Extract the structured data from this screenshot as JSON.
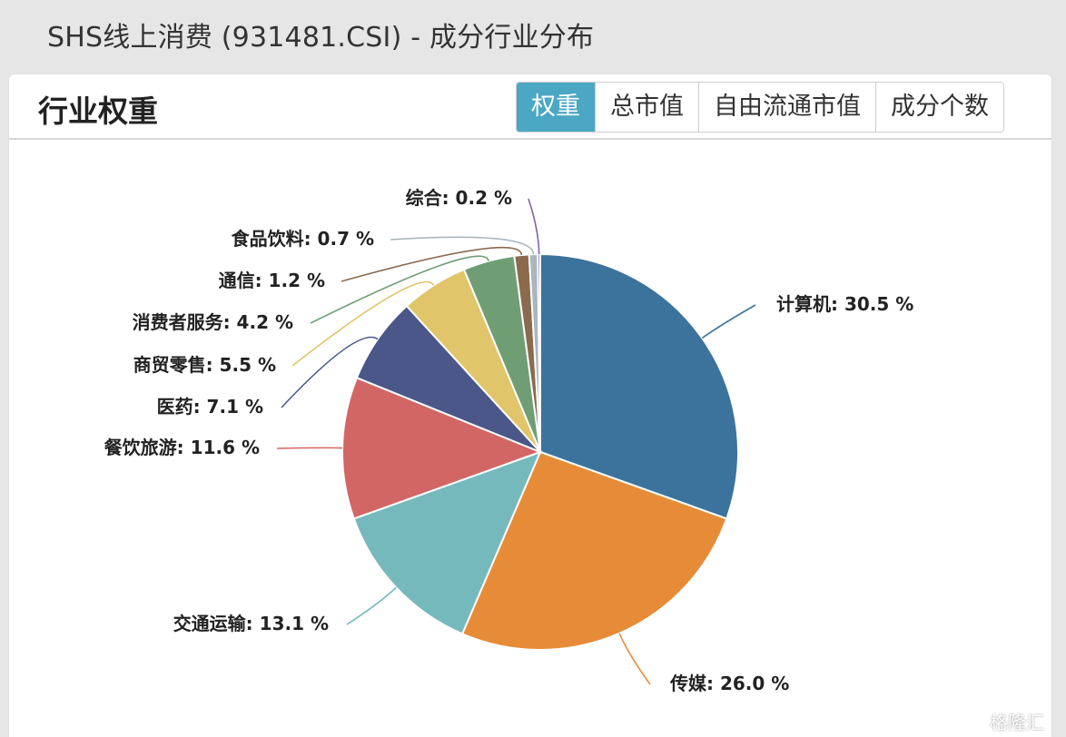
{
  "page": {
    "title": "SHS线上消费 (931481.CSI) - 成分行业分布"
  },
  "panel": {
    "title": "行业权重",
    "tabs": [
      {
        "label": "权重",
        "active": true
      },
      {
        "label": "总市值",
        "active": false
      },
      {
        "label": "自由流通市值",
        "active": false
      },
      {
        "label": "成分个数",
        "active": false
      }
    ]
  },
  "watermark": "格隆汇",
  "chart_data": {
    "type": "pie",
    "unit": "%",
    "slices": [
      {
        "name": "计算机",
        "value": 30.5,
        "color": "#3c739c"
      },
      {
        "name": "传媒",
        "value": 26.0,
        "color": "#e68c38"
      },
      {
        "name": "交通运输",
        "value": 13.1,
        "color": "#76b9bc"
      },
      {
        "name": "餐饮旅游",
        "value": 11.6,
        "color": "#d26664"
      },
      {
        "name": "医药",
        "value": 7.1,
        "color": "#4b5788"
      },
      {
        "name": "商贸零售",
        "value": 5.5,
        "color": "#e0c56a"
      },
      {
        "name": "消费者服务",
        "value": 4.2,
        "color": "#6f9e75"
      },
      {
        "name": "通信",
        "value": 1.2,
        "color": "#8b6a4e"
      },
      {
        "name": "食品饮料",
        "value": 0.7,
        "color": "#aab6bd"
      },
      {
        "name": "综合",
        "value": 0.2,
        "color": "#7e64a2"
      }
    ]
  }
}
